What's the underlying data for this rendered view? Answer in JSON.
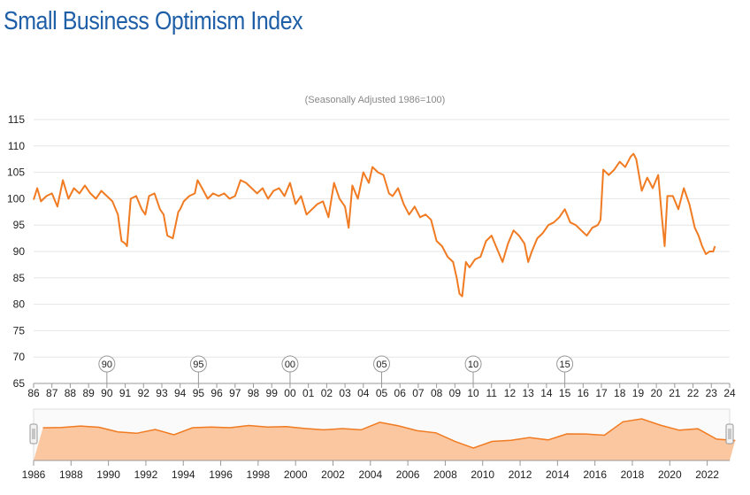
{
  "title": "Small Business Optimism Index",
  "subtitle": "(Seasonally Adjusted 1986=100)",
  "colors": {
    "title": "#1f5fa8",
    "line": "#f07b22",
    "navigator_fill": "#fbc7a0",
    "grid": "#e6e6e6"
  },
  "flags": [
    "90",
    "95",
    "00",
    "05",
    "10",
    "15"
  ],
  "chart_data": {
    "type": "line",
    "title": "Small Business Optimism Index",
    "subtitle": "(Seasonally Adjusted 1986=100)",
    "ylim": [
      65,
      115
    ],
    "xlim": [
      1986,
      2024
    ],
    "y_ticks": [
      "65",
      "70",
      "75",
      "80",
      "85",
      "90",
      "95",
      "100",
      "105",
      "110",
      "115"
    ],
    "x_tick_labels": [
      "86",
      "87",
      "88",
      "89",
      "90",
      "91",
      "92",
      "93",
      "94",
      "95",
      "96",
      "97",
      "98",
      "99",
      "00",
      "01",
      "02",
      "03",
      "04",
      "05",
      "06",
      "07",
      "08",
      "09",
      "10",
      "11",
      "12",
      "13",
      "14",
      "15",
      "16",
      "17",
      "18",
      "19",
      "20",
      "21",
      "22",
      "23",
      "24"
    ],
    "grid": true,
    "series": [
      {
        "x": [
          1986.0,
          1986.2,
          1986.4,
          1986.7,
          1987.0,
          1987.3,
          1987.6,
          1987.9,
          1988.2,
          1988.5,
          1988.8,
          1989.1,
          1989.4,
          1989.7,
          1990.0,
          1990.3,
          1990.6,
          1990.8,
          1991.0,
          1991.1,
          1991.3,
          1991.6,
          1991.9,
          1992.1,
          1992.3,
          1992.6,
          1992.9,
          1993.1,
          1993.3,
          1993.6,
          1993.9,
          1994.0,
          1994.2,
          1994.5,
          1994.8,
          1994.95,
          1995.2,
          1995.5,
          1995.8,
          1996.1,
          1996.4,
          1996.7,
          1997.0,
          1997.3,
          1997.6,
          1997.9,
          1998.2,
          1998.5,
          1998.8,
          1999.1,
          1999.4,
          1999.7,
          2000.0,
          2000.3,
          2000.6,
          2000.9,
          2001.2,
          2001.5,
          2001.8,
          2002.1,
          2002.4,
          2002.7,
          2003.0,
          2003.2,
          2003.4,
          2003.7,
          2004.0,
          2004.3,
          2004.5,
          2004.8,
          2005.1,
          2005.4,
          2005.6,
          2005.9,
          2006.2,
          2006.5,
          2006.8,
          2007.1,
          2007.4,
          2007.7,
          2008.0,
          2008.3,
          2008.6,
          2008.9,
          2009.1,
          2009.25,
          2009.4,
          2009.6,
          2009.8,
          2010.1,
          2010.4,
          2010.7,
          2011.0,
          2011.3,
          2011.6,
          2011.9,
          2012.2,
          2012.5,
          2012.8,
          2013.0,
          2013.2,
          2013.5,
          2013.8,
          2014.1,
          2014.4,
          2014.7,
          2015.0,
          2015.3,
          2015.6,
          2015.9,
          2016.2,
          2016.5,
          2016.8,
          2016.95,
          2017.1,
          2017.4,
          2017.7,
          2018.0,
          2018.3,
          2018.6,
          2018.75,
          2018.9,
          2019.2,
          2019.5,
          2019.8,
          2020.1,
          2020.3,
          2020.45,
          2020.6,
          2020.9,
          2021.2,
          2021.5,
          2021.8,
          2022.1,
          2022.3,
          2022.5,
          2022.7,
          2022.9,
          2023.1,
          2023.2
        ],
        "y": [
          99.8,
          102.0,
          99.5,
          100.5,
          101.0,
          98.5,
          103.5,
          100.0,
          102.0,
          101.0,
          102.5,
          101.0,
          100.0,
          101.5,
          100.5,
          99.5,
          97.0,
          92.0,
          91.5,
          91.0,
          100.0,
          100.5,
          98.0,
          97.0,
          100.5,
          101.0,
          98.0,
          97.0,
          93.0,
          92.5,
          97.5,
          98.0,
          99.5,
          100.5,
          101.0,
          103.5,
          102.0,
          100.0,
          101.0,
          100.5,
          101.0,
          100.0,
          100.5,
          103.5,
          103.0,
          102.0,
          101.0,
          102.0,
          100.0,
          101.5,
          102.0,
          100.5,
          103.0,
          99.0,
          100.5,
          97.0,
          98.0,
          99.0,
          99.5,
          96.5,
          103.0,
          100.0,
          98.5,
          94.5,
          102.5,
          100.0,
          105.0,
          103.0,
          106.0,
          105.0,
          104.5,
          101.0,
          100.5,
          102.0,
          99.0,
          97.0,
          98.5,
          96.5,
          97.0,
          96.0,
          92.0,
          91.0,
          89.0,
          88.0,
          85.0,
          82.0,
          81.5,
          88.0,
          87.0,
          88.5,
          89.0,
          92.0,
          93.0,
          90.5,
          88.0,
          91.5,
          94.0,
          93.0,
          91.5,
          88.0,
          90.0,
          92.5,
          93.5,
          95.0,
          95.5,
          96.5,
          98.0,
          95.5,
          95.0,
          94.0,
          93.0,
          94.5,
          95.0,
          96.0,
          105.5,
          104.5,
          105.5,
          107.0,
          106.0,
          108.0,
          108.5,
          107.5,
          101.5,
          104.0,
          102.0,
          104.5,
          96.5,
          91.0,
          100.5,
          100.5,
          98.0,
          102.0,
          99.0,
          94.5,
          93.0,
          91.0,
          89.5,
          90.0,
          90.0,
          91.0
        ]
      }
    ],
    "navigator": {
      "x_tick_labels": [
        "1986",
        "1988",
        "1990",
        "1992",
        "1994",
        "1996",
        "1998",
        "2000",
        "2002",
        "2004",
        "2006",
        "2008",
        "2010",
        "2012",
        "2014",
        "2016",
        "2018",
        "2020",
        "2022"
      ]
    }
  }
}
